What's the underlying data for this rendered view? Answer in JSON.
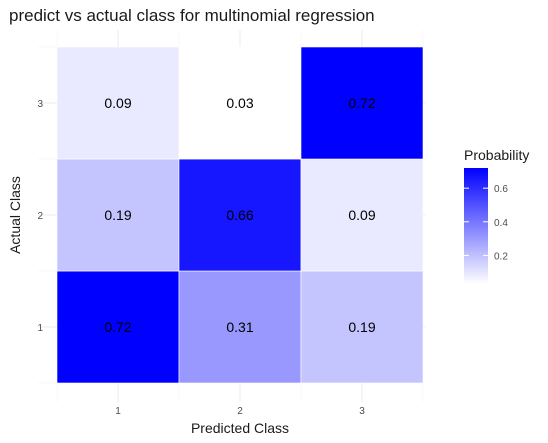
{
  "chart_data": {
    "type": "heatmap",
    "title": "predict vs actual class for multinomial regression",
    "xlabel": "Predicted Class",
    "ylabel": "Actual Class",
    "x_categories": [
      "1",
      "2",
      "3"
    ],
    "y_categories": [
      "1",
      "2",
      "3"
    ],
    "cells": [
      {
        "actual": "1",
        "predicted": "1",
        "value": 0.72,
        "label": "0.72"
      },
      {
        "actual": "1",
        "predicted": "2",
        "value": 0.31,
        "label": "0.31"
      },
      {
        "actual": "1",
        "predicted": "3",
        "value": 0.19,
        "label": "0.19"
      },
      {
        "actual": "2",
        "predicted": "1",
        "value": 0.19,
        "label": "0.19"
      },
      {
        "actual": "2",
        "predicted": "2",
        "value": 0.66,
        "label": "0.66"
      },
      {
        "actual": "2",
        "predicted": "3",
        "value": 0.09,
        "label": "0.09"
      },
      {
        "actual": "3",
        "predicted": "1",
        "value": 0.09,
        "label": "0.09"
      },
      {
        "actual": "3",
        "predicted": "2",
        "value": 0.03,
        "label": "0.03"
      },
      {
        "actual": "3",
        "predicted": "3",
        "value": 0.72,
        "label": "0.72"
      }
    ],
    "legend": {
      "title": "Probability",
      "ticks": [
        "0.2",
        "0.4",
        "0.6"
      ],
      "tick_values": [
        0.2,
        0.4,
        0.6
      ],
      "range": [
        0.03,
        0.72
      ],
      "low_color": "#ffffff",
      "high_color": "#0000ff"
    },
    "grid": true,
    "legend_position": "right"
  }
}
